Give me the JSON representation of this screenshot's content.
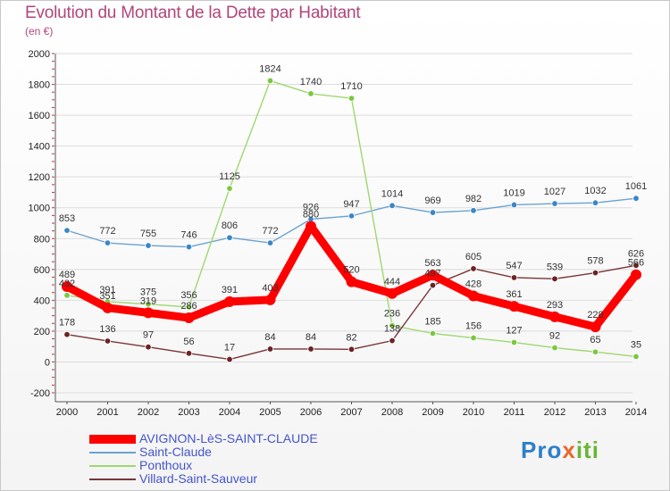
{
  "header": {
    "title": "Evolution du Montant de la Dette par Habitant",
    "subtitle": "(en €)"
  },
  "logo": {
    "text": "Proxiti"
  },
  "chart_data": {
    "type": "line",
    "title": "Evolution du Montant de la Dette par Habitant",
    "subtitle": "(en €)",
    "xlabel": "",
    "ylabel": "",
    "x": [
      "2000",
      "2001",
      "2002",
      "2003",
      "2004",
      "2005",
      "2006",
      "2007",
      "2008",
      "2009",
      "2010",
      "2011",
      "2012",
      "2013",
      "2014"
    ],
    "ylim": [
      -200,
      2000
    ],
    "yticks": [
      -200,
      0,
      200,
      400,
      600,
      800,
      1000,
      1200,
      1400,
      1600,
      1800,
      2000
    ],
    "grid": "horizontal",
    "legend_position": "bottom-left",
    "series": [
      {
        "name": "Saint-Claude",
        "color": "#6aa3d2",
        "marker_color": "#3a86c8",
        "values": [
          853,
          772,
          755,
          746,
          806,
          772,
          926,
          947,
          1014,
          969,
          982,
          1019,
          1027,
          1032,
          1061
        ]
      },
      {
        "name": "Ponthoux",
        "color": "#9ed870",
        "marker_color": "#7cc740",
        "values": [
          432,
          391,
          375,
          356,
          1125,
          1824,
          1740,
          1710,
          236,
          185,
          156,
          127,
          92,
          65,
          35
        ]
      },
      {
        "name": "Villard-Saint-Sauveur",
        "color": "#7a3438",
        "marker_color": "#6b2326",
        "values": [
          178,
          136,
          97,
          56,
          17,
          84,
          84,
          82,
          138,
          497,
          605,
          547,
          539,
          578,
          626
        ]
      },
      {
        "name": "AVIGNON-LèS-SAINT-CLAUDE",
        "color": "#ff0000",
        "marker_color": "#ff0000",
        "values": [
          489,
          351,
          319,
          286,
          391,
          403,
          880,
          520,
          444,
          563,
          428,
          361,
          293,
          228,
          566
        ]
      }
    ],
    "legend_order": [
      "AVIGNON-LèS-SAINT-CLAUDE",
      "Saint-Claude",
      "Ponthoux",
      "Villard-Saint-Sauveur"
    ]
  }
}
